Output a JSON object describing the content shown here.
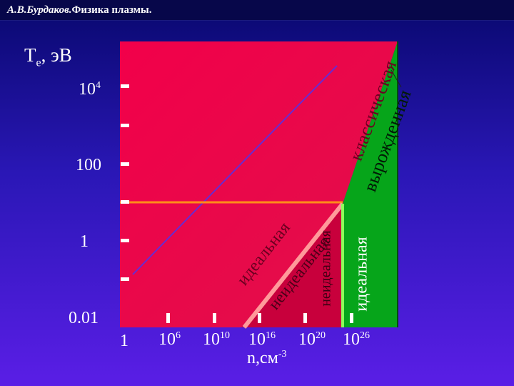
{
  "header": {
    "author": "А.В.Бурдаков.",
    "title": "Физика плазмы."
  },
  "diagram": {
    "y_axis_label": "T",
    "y_axis_label_sub": "e",
    "y_axis_label_unit": ", эВ",
    "y_ticks": [
      {
        "base": "10",
        "exp": "4"
      },
      {
        "base": "100",
        "exp": ""
      },
      {
        "base": "1",
        "exp": ""
      },
      {
        "base": "0.01",
        "exp": ""
      }
    ],
    "x_ticks": [
      {
        "base": "1",
        "exp": ""
      },
      {
        "base": "10",
        "exp": "6"
      },
      {
        "base": "10",
        "exp": "10"
      },
      {
        "base": "10",
        "exp": "16"
      },
      {
        "base": "10",
        "exp": "20"
      },
      {
        "base": "10",
        "exp": "26"
      }
    ],
    "x_axis_label": "n,см",
    "x_axis_label_exp": "-3",
    "regions": {
      "classical": "классическая",
      "degenerate": "вырожденная",
      "ideal_left": "идеальная",
      "nonideal_1": "неидеальная",
      "nonideal_2": "неидеальная",
      "ideal_right": "идеальная"
    },
    "colors": {
      "classical_region": "#f0004e",
      "degenerate_region": "#06a51a",
      "horizontal_line": "#ff8c1a",
      "boundary_line": "#ff9a9a",
      "green_line": "#8cff5a",
      "diagonal_line": "#6a2bd0"
    }
  }
}
